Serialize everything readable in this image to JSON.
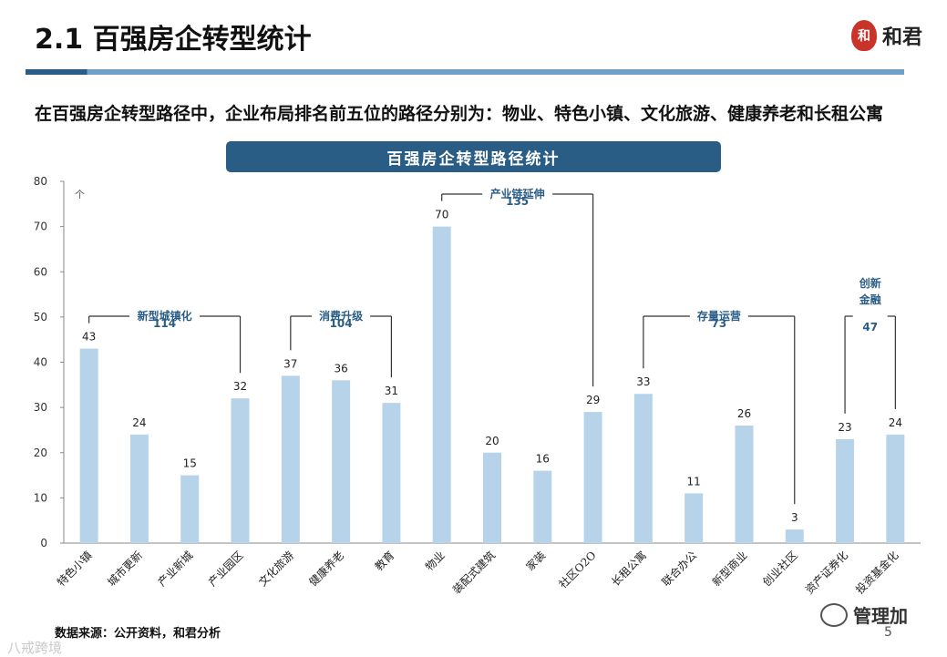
{
  "header": {
    "title": "2.1 百强房企转型统计",
    "logo_seal": "和",
    "logo_text": "和君"
  },
  "headline": "在百强房企转型路径中，企业布局排名前五位的路径分别为：物业、特色小镇、文化旅游、健康养老和长租公寓",
  "chart_banner": "百强房企转型路径统计",
  "colors": {
    "bar": "#b6d3ea",
    "accent": "#2a5d86",
    "axis": "#888888"
  },
  "chart_data": {
    "type": "bar",
    "title": "百强房企转型路径统计",
    "ylabel": "个",
    "ylim": [
      0,
      80
    ],
    "yticks": [
      0,
      10,
      20,
      30,
      40,
      50,
      60,
      70,
      80
    ],
    "categories": [
      "特色小镇",
      "城市更新",
      "产业新城",
      "产业园区",
      "文化旅游",
      "健康养老",
      "教育",
      "物业",
      "装配式建筑",
      "家装",
      "社区O2O",
      "长租公寓",
      "联合办公",
      "新型商业",
      "创业社区",
      "资产证券化",
      "投资基金化"
    ],
    "values": [
      43,
      24,
      15,
      32,
      37,
      36,
      31,
      70,
      20,
      16,
      29,
      33,
      11,
      26,
      3,
      23,
      24
    ],
    "groups": [
      {
        "name": "新型城镇化",
        "total": "114",
        "from": 0,
        "to": 3
      },
      {
        "name": "消费升级",
        "total": "104",
        "from": 4,
        "to": 6
      },
      {
        "name": "产业链延伸",
        "total": "135",
        "from": 7,
        "to": 10
      },
      {
        "name": "存量运营",
        "total": "73",
        "from": 11,
        "to": 14
      },
      {
        "name": "创新金融",
        "total": "47",
        "from": 15,
        "to": 16
      }
    ]
  },
  "source": "数据来源：公开资料，和君分析",
  "watermark_left": "八戒跨境",
  "watermark_right": "管理加",
  "page_number": "5"
}
